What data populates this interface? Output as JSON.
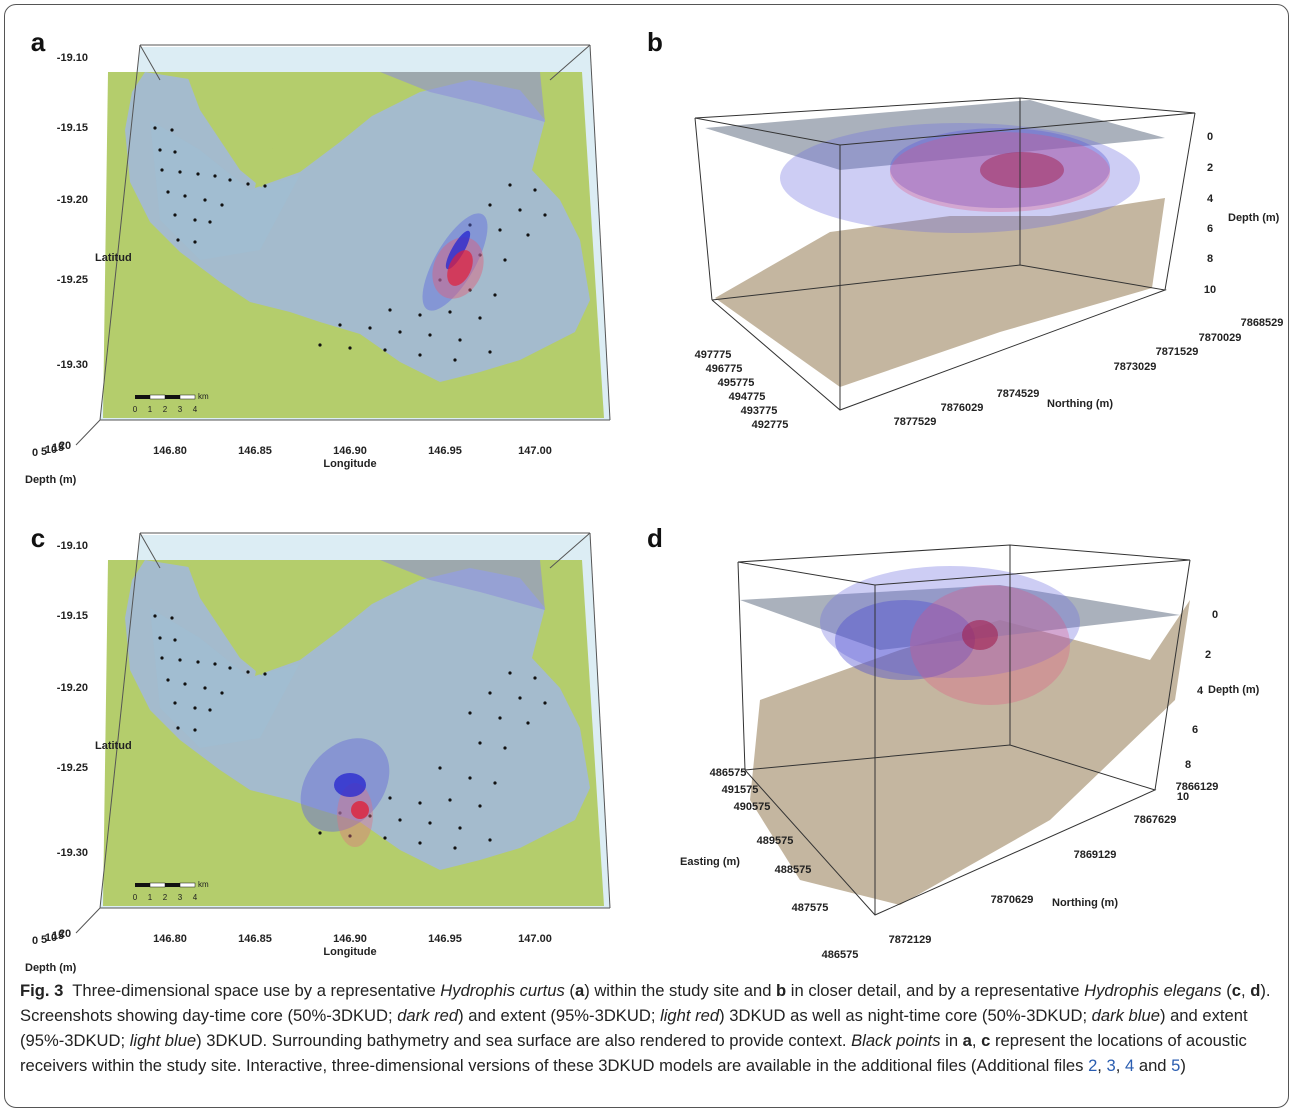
{
  "panels": [
    {
      "label": "a",
      "latitude_ticks": [
        "-19.10",
        "-19.15",
        "-19.20",
        "-19.25",
        "-19.30"
      ],
      "latitude_label": "Latitud",
      "longitude_ticks": [
        "146.80",
        "146.85",
        "146.90",
        "146.95",
        "147.00"
      ],
      "longitude_label": "Longitude",
      "depth_ticks": [
        "0",
        "5",
        "10",
        "15",
        "20"
      ],
      "depth_label": "Depth (m)",
      "scale_bar": {
        "ticks": [
          "0",
          "1",
          "2",
          "3",
          "4"
        ],
        "unit": "km"
      }
    },
    {
      "label": "b",
      "depth_ticks": [
        "0",
        "2",
        "4",
        "6",
        "8",
        "10"
      ],
      "depth_label": "Depth (m)",
      "easting_ticks": [
        "497775",
        "496775",
        "495775",
        "494775",
        "493775",
        "492775"
      ],
      "northing_ticks": [
        "7868529",
        "7870029",
        "7871529",
        "7873029",
        "7874529",
        "7876029",
        "7877529"
      ],
      "northing_label": "Northing (m)"
    },
    {
      "label": "c",
      "latitude_ticks": [
        "-19.10",
        "-19.15",
        "-19.20",
        "-19.25",
        "-19.30"
      ],
      "latitude_label": "Latitud",
      "longitude_ticks": [
        "146.80",
        "146.85",
        "146.90",
        "146.95",
        "147.00"
      ],
      "longitude_label": "Longitude",
      "depth_ticks": [
        "0",
        "5",
        "10",
        "15",
        "20"
      ],
      "depth_label": "Depth (m)",
      "scale_bar": {
        "ticks": [
          "0",
          "1",
          "2",
          "3",
          "4"
        ],
        "unit": "km"
      }
    },
    {
      "label": "d",
      "depth_ticks": [
        "0",
        "2",
        "4",
        "6",
        "8",
        "10"
      ],
      "depth_label": "Depth (m)",
      "easting_ticks": [
        "486575",
        "491575",
        "490575",
        "489575",
        "488575",
        "487575",
        "486575"
      ],
      "easting_label": "Easting (m)",
      "northing_ticks": [
        "7866129",
        "7867629",
        "7869129",
        "7870629",
        "7872129"
      ],
      "northing_label": "Northing (m)"
    }
  ],
  "caption": {
    "segments": [
      "Fig. 3",
      "  Three-dimensional space use by a representative ",
      "Hydrophis curtus",
      " (",
      "a",
      ") within the study site and ",
      "b",
      " in closer detail, and by a representative ",
      "Hydrophis elegans",
      " (",
      "c",
      ", ",
      "d",
      "). Screenshots showing day-time core (50%-3DKUD; ",
      "dark red",
      ") and extent (95%-3DKUD; ",
      "light red",
      ") 3DKUD as well as night-time core (50%-3DKUD; ",
      "dark blue",
      ") and extent (95%-3DKUD; ",
      "light blue",
      ") 3DKUD. Surrounding bathymetry and sea surface are also rendered to provide context. ",
      "Black points",
      " in ",
      "a",
      ", ",
      "c",
      " represent the locations of acoustic receivers within the study site. Interactive, three-dimensional versions of these 3DKUD models are available in the additional files (Additional files ",
      "2",
      ", ",
      "3",
      ", ",
      "4",
      " and ",
      "5",
      ")"
    ]
  }
}
